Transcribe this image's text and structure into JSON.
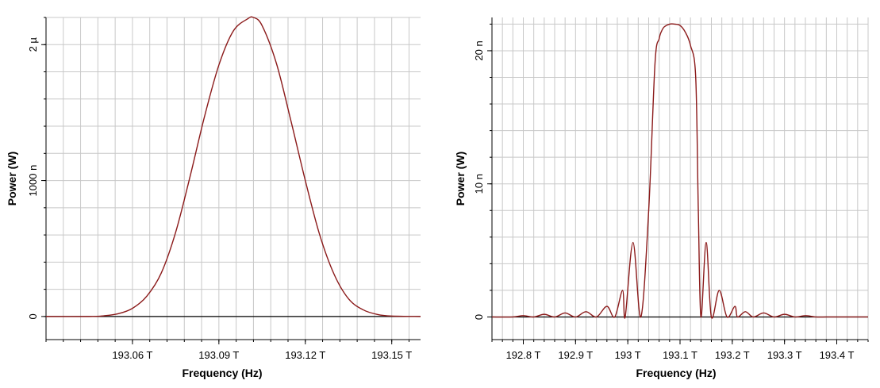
{
  "colors": {
    "curve": "#8b1a1a",
    "grid": "#c8c8c8",
    "frame": "#000000",
    "background": "#ffffff"
  },
  "chart_data": [
    {
      "type": "line",
      "xlabel": "Frequency (Hz)",
      "ylabel": "Power (W)",
      "xlim": [
        193.03,
        193.16
      ],
      "ylim": [
        -1.7e-07,
        2.2e-06
      ],
      "x_ticks": [
        {
          "value": 193.06,
          "label": "193.06 T"
        },
        {
          "value": 193.09,
          "label": "193.09 T"
        },
        {
          "value": 193.12,
          "label": "193.12 T"
        },
        {
          "value": 193.15,
          "label": "193.15 T"
        }
      ],
      "y_ticks": [
        {
          "value": 0,
          "label": "0"
        },
        {
          "value": 1e-06,
          "label": "1000 n"
        },
        {
          "value": 2e-06,
          "label": "2 µ"
        }
      ],
      "grid": true,
      "series": [
        {
          "x": [
            193.03,
            193.045,
            193.05,
            193.055,
            193.06,
            193.065,
            193.07,
            193.075,
            193.08,
            193.085,
            193.09,
            193.095,
            193.1,
            193.102,
            193.105,
            193.11,
            193.115,
            193.12,
            193.125,
            193.13,
            193.135,
            193.14,
            193.145,
            193.15,
            193.16
          ],
          "y": [
            0,
            0,
            5e-09,
            2e-08,
            6e-08,
            1.5e-07,
            3.2e-07,
            6.2e-07,
            1.03e-06,
            1.47e-06,
            1.85e-06,
            2.1e-06,
            2.19e-06,
            2.2e-06,
            2.14e-06,
            1.86e-06,
            1.44e-06,
            1e-06,
            6e-07,
            3.1e-07,
            1.3e-07,
            5e-08,
            1.5e-08,
            3e-09,
            0
          ]
        }
      ]
    },
    {
      "type": "line",
      "xlabel": "Frequency (Hz)",
      "ylabel": "Power (W)",
      "xlim": [
        192.74,
        193.46
      ],
      "ylim": [
        -1.7e-09,
        2.25e-08
      ],
      "x_ticks": [
        {
          "value": 192.8,
          "label": "192.8 T"
        },
        {
          "value": 192.9,
          "label": "192.9 T"
        },
        {
          "value": 193.0,
          "label": "193 T"
        },
        {
          "value": 193.1,
          "label": "193.1 T"
        },
        {
          "value": 193.2,
          "label": "193.2 T"
        },
        {
          "value": 193.3,
          "label": "193.3 T"
        },
        {
          "value": 193.4,
          "label": "193.4 T"
        }
      ],
      "y_ticks": [
        {
          "value": 0,
          "label": "0"
        },
        {
          "value": 1e-08,
          "label": "10 n"
        },
        {
          "value": 2e-08,
          "label": "20 n"
        }
      ],
      "grid": true,
      "series": [
        {
          "x": [
            192.74,
            192.78,
            192.8,
            192.82,
            192.84,
            192.86,
            192.88,
            192.9,
            192.92,
            192.94,
            192.96,
            192.975,
            192.99,
            192.995,
            193.01,
            193.025,
            193.04,
            193.052,
            193.06,
            193.065,
            193.07,
            193.08,
            193.09,
            193.1,
            193.11,
            193.12,
            193.13,
            193.135,
            193.14,
            193.15,
            193.16,
            193.175,
            193.19,
            193.205,
            193.21,
            193.225,
            193.24,
            193.26,
            193.28,
            193.3,
            193.32,
            193.34,
            193.36,
            193.38,
            193.4,
            193.42,
            193.46
          ],
          "y": [
            0,
            0,
            1e-10,
            0,
            2e-10,
            0,
            3e-10,
            0,
            4e-10,
            0,
            8e-10,
            0,
            2e-09,
            0,
            5.6e-09,
            0,
            8e-09,
            1.9e-08,
            2.09e-08,
            2.15e-08,
            2.18e-08,
            2.2e-08,
            2.2e-08,
            2.19e-08,
            2.14e-08,
            2.04e-08,
            1.8e-08,
            8e-09,
            0,
            5.6e-09,
            0,
            2e-09,
            0,
            8e-10,
            0,
            4e-10,
            0,
            3e-10,
            0,
            2e-10,
            0,
            1e-10,
            0,
            0,
            0,
            0,
            0
          ]
        }
      ]
    }
  ]
}
